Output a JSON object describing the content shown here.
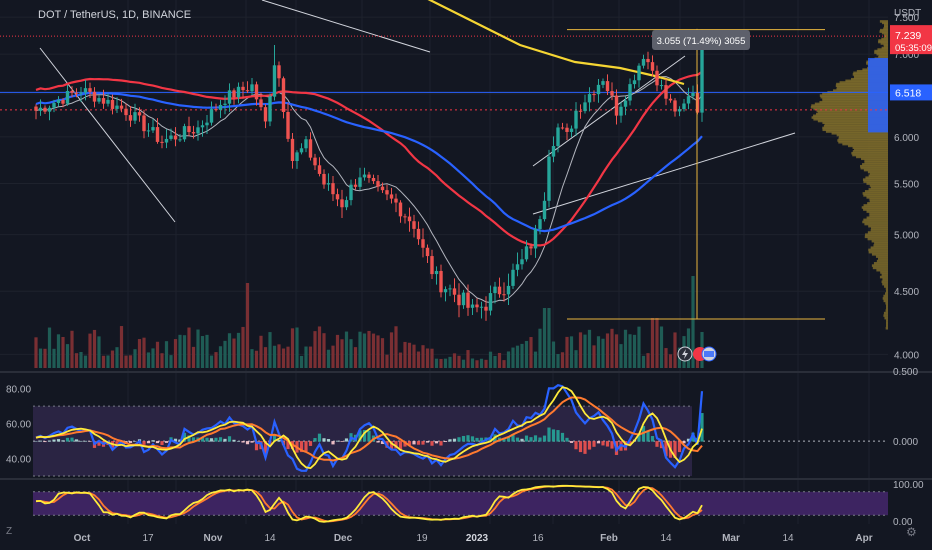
{
  "header": {
    "symbol": "DOT / TetherUS, 1D, BINANCE",
    "quote_unit": "USDT"
  },
  "badges": {
    "last_price": "7.239",
    "countdown": "05:35:09",
    "level": "6.518",
    "measure_label": "3.055 (71.49%) 3055"
  },
  "side_icons": [
    "Z",
    "⚙"
  ],
  "colors": {
    "background": "#131722",
    "bull": "#26a69a",
    "bear": "#ef5350",
    "ma_slow": "#2962ff",
    "ma_mid": "#f23645",
    "ma_long": "#f5d533",
    "ma_fast": "#b2b5be",
    "measure": "#e8b63e",
    "profile": "#7b6a2a",
    "profile_highlight": "#2962ff",
    "panel_fill": "#2a2443",
    "stoch_fill": "#3d2461",
    "rsi_line": "#2962ff",
    "rsi_signal": "#ffeb3b",
    "rsi_ma": "#ff7a2f",
    "stoch_k": "#ffeb3b",
    "stoch_d": "#ff7a2f"
  },
  "chart_data": [
    {
      "type": "candlestick",
      "title": "DOT / TetherUS, 1D, BINANCE",
      "x_tick_labels": [
        "Oct",
        "17",
        "Nov",
        "14",
        "Dec",
        "19",
        "2023",
        "16",
        "Feb",
        "14",
        "Mar",
        "14",
        "Apr"
      ],
      "y_tick_labels": [
        "7.500",
        "7.000",
        "6.500",
        "6.000",
        "5.500",
        "5.000",
        "4.500",
        "4.000"
      ],
      "ylim": [
        3.9,
        7.7
      ],
      "y_scale": "log",
      "last_price": 7.239,
      "horizontal_levels": [
        7.239,
        6.518,
        6.31
      ],
      "measure": {
        "from": 4.273,
        "to": 7.328,
        "change": 3.055,
        "percent": 71.49
      },
      "anchor_points": [
        {
          "i": 0,
          "c": 6.3
        },
        {
          "i": 10,
          "c": 6.55
        },
        {
          "i": 20,
          "c": 6.3
        },
        {
          "i": 28,
          "c": 5.95
        },
        {
          "i": 36,
          "c": 6.1
        },
        {
          "i": 42,
          "c": 6.45
        },
        {
          "i": 48,
          "c": 6.6
        },
        {
          "i": 51,
          "c": 6.15
        },
        {
          "i": 53,
          "c": 6.9
        },
        {
          "i": 54,
          "c": 6.7
        },
        {
          "i": 55,
          "c": 6.35
        },
        {
          "i": 57,
          "c": 5.75
        },
        {
          "i": 60,
          "c": 5.9
        },
        {
          "i": 64,
          "c": 5.5
        },
        {
          "i": 68,
          "c": 5.3
        },
        {
          "i": 72,
          "c": 5.6
        },
        {
          "i": 76,
          "c": 5.4
        },
        {
          "i": 80,
          "c": 5.3
        },
        {
          "i": 84,
          "c": 5.1
        },
        {
          "i": 86,
          "c": 4.85
        },
        {
          "i": 89,
          "c": 4.6
        },
        {
          "i": 94,
          "c": 4.45
        },
        {
          "i": 97,
          "c": 4.33
        },
        {
          "i": 100,
          "c": 4.4
        },
        {
          "i": 104,
          "c": 4.55
        },
        {
          "i": 108,
          "c": 4.75
        },
        {
          "i": 111,
          "c": 5.0
        },
        {
          "i": 113,
          "c": 5.4
        },
        {
          "i": 114,
          "c": 5.85
        },
        {
          "i": 116,
          "c": 6.1
        },
        {
          "i": 118,
          "c": 6.0
        },
        {
          "i": 120,
          "c": 6.3
        },
        {
          "i": 123,
          "c": 6.5
        },
        {
          "i": 126,
          "c": 6.7
        },
        {
          "i": 129,
          "c": 6.3
        },
        {
          "i": 132,
          "c": 6.6
        },
        {
          "i": 135,
          "c": 7.0
        },
        {
          "i": 137,
          "c": 6.8
        },
        {
          "i": 140,
          "c": 6.45
        },
        {
          "i": 143,
          "c": 6.25
        },
        {
          "i": 146,
          "c": 6.55
        },
        {
          "i": 147,
          "c": 6.3
        },
        {
          "i": 148,
          "c": 7.24
        }
      ],
      "volume_profile": {
        "highlight_level": 6.518
      }
    },
    {
      "type": "line",
      "title": "",
      "y_tick_labels": [
        "80.00",
        "60.00",
        "40.00"
      ],
      "right_tick_labels": [
        "0.500",
        "0.000"
      ],
      "ylim": [
        30,
        85
      ],
      "band": [
        70,
        30
      ],
      "midline": 50,
      "series": [
        {
          "values": []
        },
        {
          "values": []
        },
        {
          "values": []
        }
      ],
      "histogram": true
    },
    {
      "type": "line",
      "title": "",
      "right_tick_labels": [
        "100.00",
        "0.00"
      ],
      "ylim": [
        0,
        100
      ],
      "band": [
        80,
        20
      ],
      "series": [
        {
          "values": []
        },
        {
          "values": []
        }
      ]
    }
  ]
}
